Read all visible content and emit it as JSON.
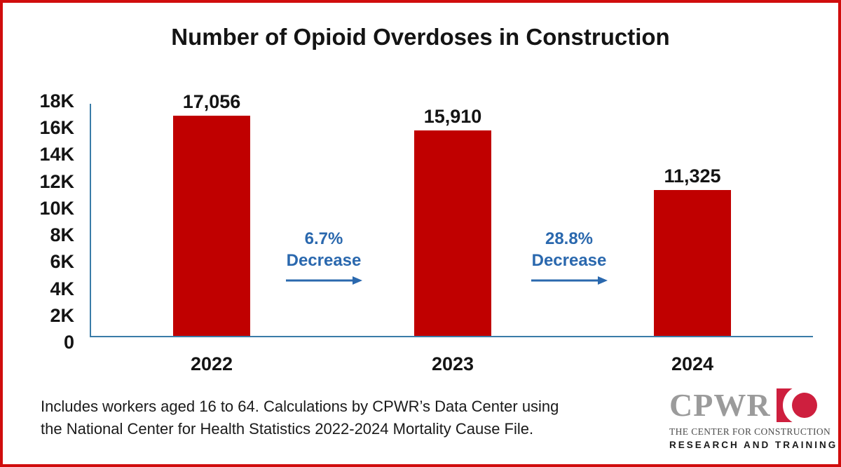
{
  "chart_data": {
    "type": "bar",
    "title": "Number of Opioid Overdoses in Construction",
    "categories": [
      "2022",
      "2023",
      "2024"
    ],
    "values": [
      17056,
      15910,
      11325
    ],
    "value_labels": [
      "17,056",
      "15,910",
      "11,325"
    ],
    "ylim": [
      0,
      18000
    ],
    "ytick_labels": [
      "18K",
      "16K",
      "14K",
      "12K",
      "10K",
      "8K",
      "6K",
      "4K",
      "2K",
      "0"
    ],
    "xlabel": "",
    "ylabel": "",
    "grid": false,
    "legend": false,
    "bar_color": "#c00000",
    "axis_color": "#3a7ca8",
    "annotation_color": "#2a68ae",
    "annotations": [
      {
        "pct": "6.7%",
        "word": "Decrease"
      },
      {
        "pct": "28.8%",
        "word": "Decrease"
      }
    ]
  },
  "footnote": {
    "line1": "Includes workers aged 16 to 64. Calculations by CPWR’s Data Center using",
    "line2": "the National Center for Health Statistics 2022-2024 Mortality Cause File."
  },
  "logo": {
    "word": "CPWR",
    "tagline1": "THE CENTER FOR CONSTRUCTION",
    "tagline2": "RESEARCH AND TRAINING",
    "word_color": "#9b9b9b",
    "mark_color": "#ce1f3e"
  },
  "page": {
    "border_color": "#d00d0d",
    "background": "#ffffff"
  }
}
